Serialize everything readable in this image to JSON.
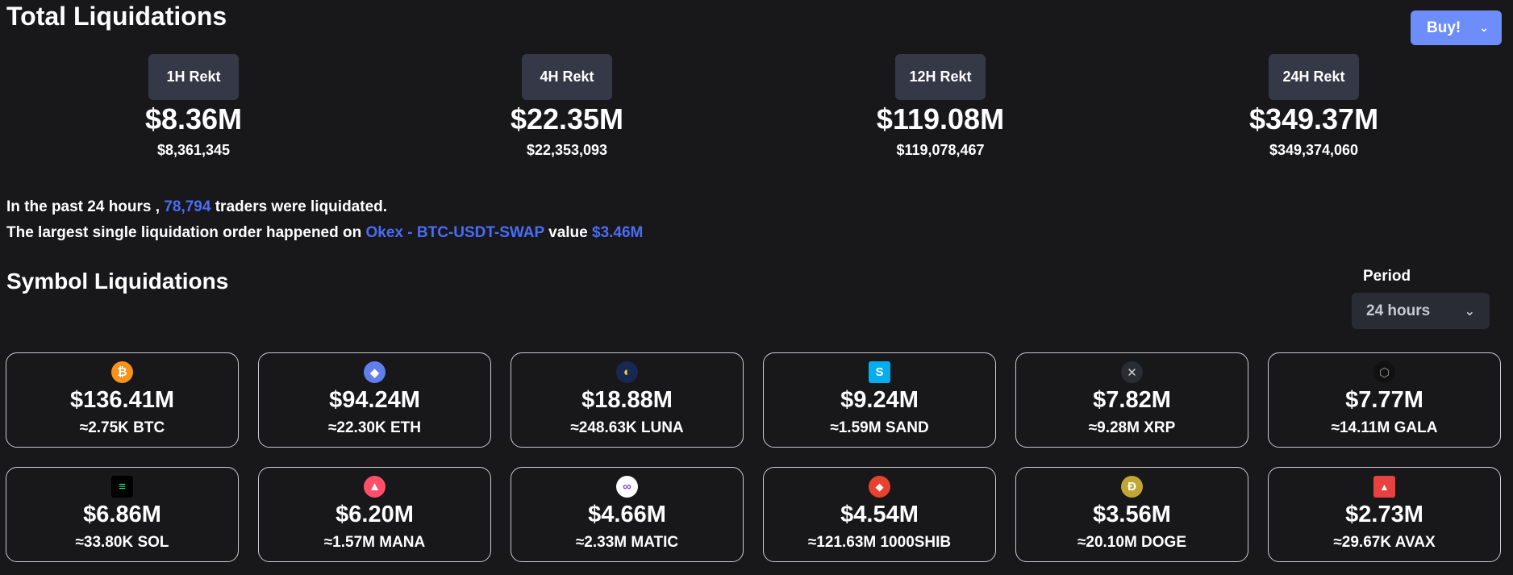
{
  "header": {
    "title": "Total Liquidations",
    "buy_label": "Buy!"
  },
  "rekt": [
    {
      "badge": "1H Rekt",
      "big": "$8.36M",
      "small": "$8,361,345"
    },
    {
      "badge": "4H Rekt",
      "big": "$22.35M",
      "small": "$22,353,093"
    },
    {
      "badge": "12H Rekt",
      "big": "$119.08M",
      "small": "$119,078,467"
    },
    {
      "badge": "24H Rekt",
      "big": "$349.37M",
      "small": "$349,374,060"
    }
  ],
  "summary": {
    "line1_prefix": "In the past 24 hours ,",
    "traders": "78,794",
    "line1_suffix": "traders were liquidated.",
    "line2_prefix": "The largest single liquidation order happened on",
    "exchange_pair": "Okex - BTC-USDT-SWAP",
    "value_word": "value",
    "value": "$3.46M"
  },
  "symbols": {
    "title": "Symbol Liquidations",
    "period_label": "Period",
    "period_value": "24 hours",
    "cards": [
      {
        "icon": "bitcoin-icon",
        "glyph": "₿",
        "color": "#f7931a",
        "value": "$136.41M",
        "amount": "≈2.75K BTC"
      },
      {
        "icon": "ethereum-icon",
        "glyph": "◆",
        "color": "#627eea",
        "value": "$94.24M",
        "amount": "≈22.30K ETH"
      },
      {
        "icon": "luna-icon",
        "glyph": "◐",
        "color": "#172852",
        "value": "$18.88M",
        "amount": "≈248.63K LUNA"
      },
      {
        "icon": "sand-icon",
        "glyph": "S",
        "color": "#04adef",
        "value": "$9.24M",
        "amount": "≈1.59M SAND"
      },
      {
        "icon": "xrp-icon",
        "glyph": "✕",
        "color": "#2a2d33",
        "value": "$7.82M",
        "amount": "≈9.28M XRP"
      },
      {
        "icon": "gala-icon",
        "glyph": "⬡",
        "color": "#111111",
        "value": "$7.77M",
        "amount": "≈14.11M GALA"
      },
      {
        "icon": "solana-icon",
        "glyph": "≡",
        "color": "#000000",
        "value": "$6.86M",
        "amount": "≈33.80K SOL"
      },
      {
        "icon": "mana-icon",
        "glyph": "▲",
        "color": "#ff4f6a",
        "value": "$6.20M",
        "amount": "≈1.57M MANA"
      },
      {
        "icon": "matic-icon",
        "glyph": "∞",
        "color": "#ffffff",
        "value": "$4.66M",
        "amount": "≈2.33M MATIC"
      },
      {
        "icon": "shib-icon",
        "glyph": "🦊",
        "color": "#e8412f",
        "value": "$4.54M",
        "amount": "≈121.63M 1000SHIB"
      },
      {
        "icon": "doge-icon",
        "glyph": "Ð",
        "color": "#c2a633",
        "value": "$3.56M",
        "amount": "≈20.10M DOGE"
      },
      {
        "icon": "avax-icon",
        "glyph": "▲",
        "color": "#e84142",
        "value": "$2.73M",
        "amount": "≈29.67K AVAX"
      }
    ]
  }
}
